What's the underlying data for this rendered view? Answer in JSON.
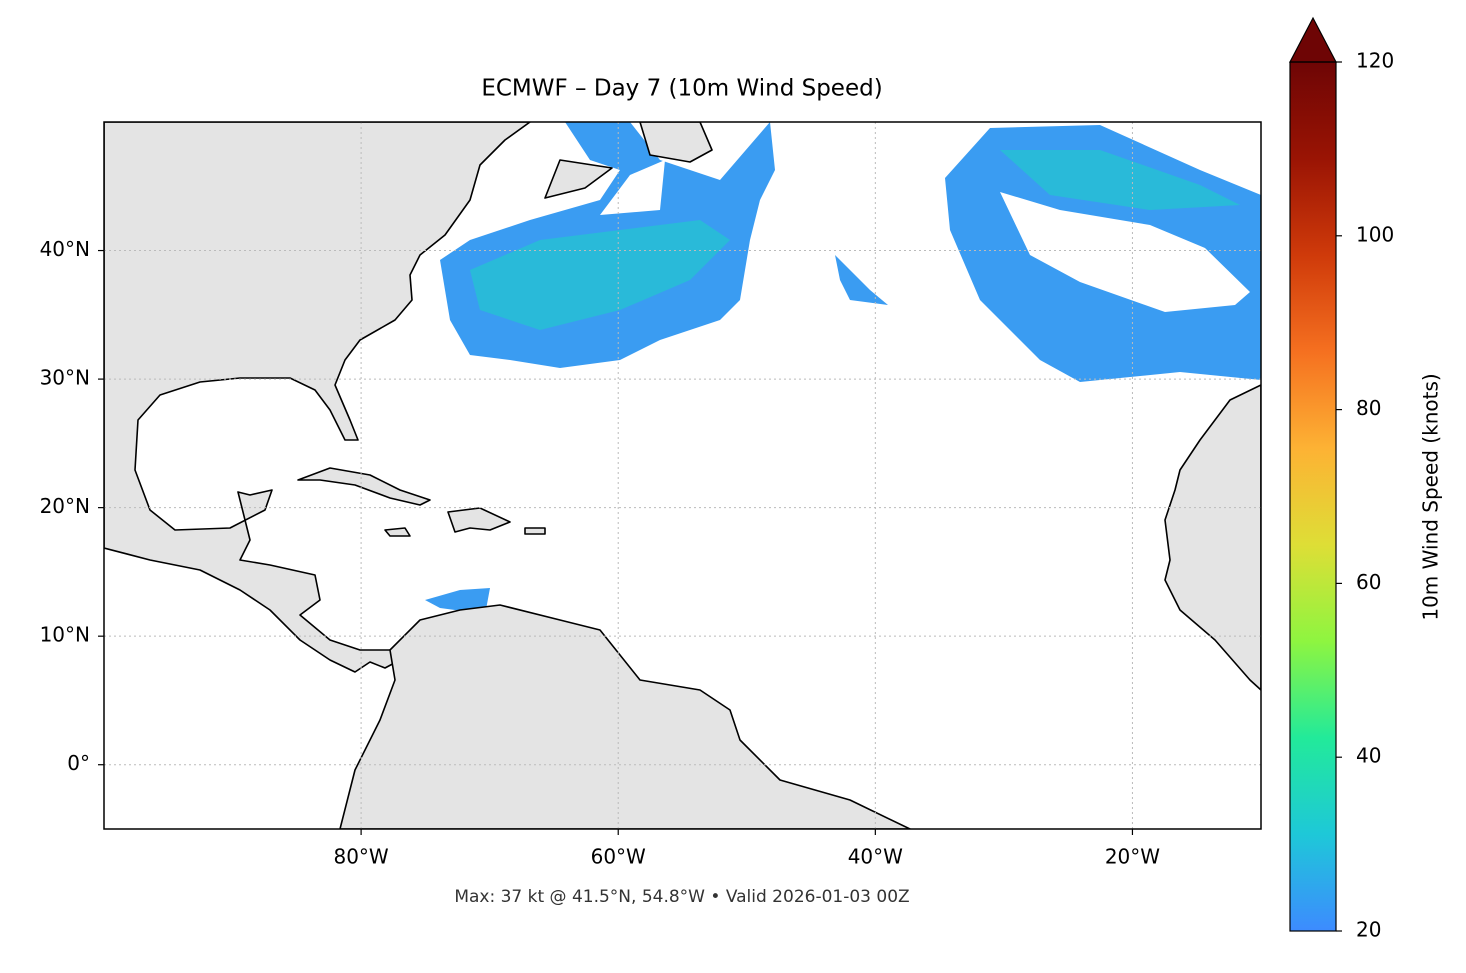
{
  "chart_data": {
    "type": "map",
    "title": "ECMWF – Day 7 (10m Wind Speed)",
    "footnote": "Max: 37 kt @ 41.5°N, 54.8°W • Valid 2026-01-03 00Z",
    "xlim": [
      -100,
      -10
    ],
    "ylim": [
      -5,
      50
    ],
    "xticks": [
      {
        "value": -80,
        "label": "80°W"
      },
      {
        "value": -60,
        "label": "60°W"
      },
      {
        "value": -40,
        "label": "40°W"
      },
      {
        "value": -20,
        "label": "20°W"
      }
    ],
    "yticks": [
      {
        "value": 0,
        "label": "0°"
      },
      {
        "value": 10,
        "label": "10°N"
      },
      {
        "value": 20,
        "label": "20°N"
      },
      {
        "value": 30,
        "label": "30°N"
      },
      {
        "value": 40,
        "label": "40°N"
      }
    ],
    "grid": true,
    "colorbar": {
      "label": "10m Wind Speed (knots)",
      "lim": [
        20,
        120
      ],
      "ticks": [
        20,
        40,
        60,
        80,
        100,
        120
      ],
      "colors": [
        "#3d8bff",
        "#1ec8d8",
        "#22ea9a",
        "#8ef540",
        "#dede36",
        "#fdb234",
        "#f57020",
        "#cf3a0a",
        "#9a1404",
        "#6e0505"
      ]
    }
  }
}
